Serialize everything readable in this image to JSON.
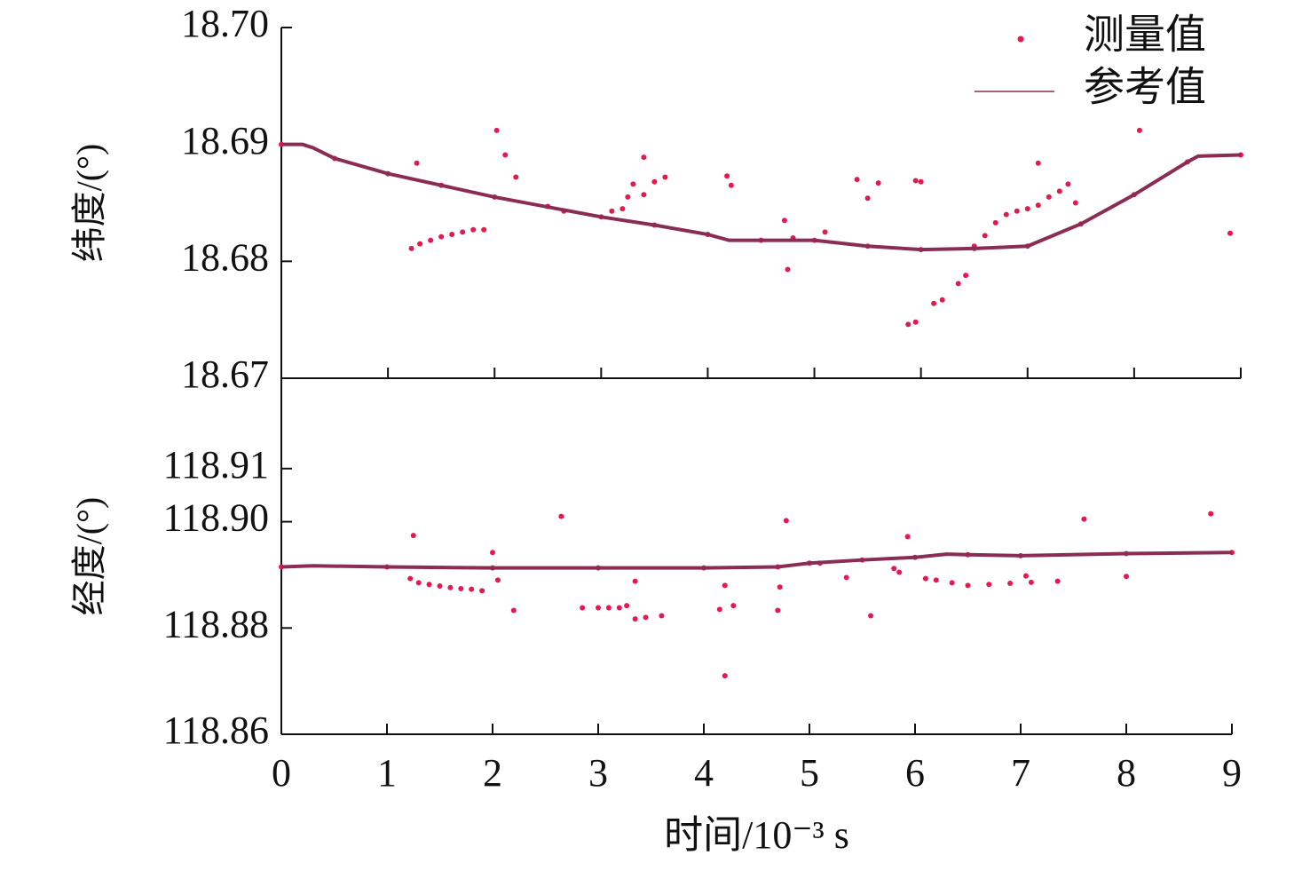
{
  "chart_data": [
    {
      "type": "line",
      "ylabel": "纬度/(°)",
      "xlim": [
        0,
        9
      ],
      "ylim": [
        18.67,
        18.7
      ],
      "yticks": [
        {
          "value": 18.7,
          "label": "18.70"
        },
        18.69,
        18.68,
        18.67
      ],
      "legend": "upper right",
      "series": [
        {
          "name": "测量值",
          "type": "scatter",
          "color": "#e8174e",
          "x": [
            0,
            0.5,
            1,
            1.5,
            2,
            2.5,
            3,
            3.5,
            4,
            4.5,
            5,
            5.5,
            6,
            6.5,
            7,
            7.5,
            8,
            8.5,
            9,
            1.22,
            1.3,
            1.4,
            1.5,
            1.6,
            1.7,
            1.8,
            1.9,
            1.27,
            2.02,
            2.1,
            2.2,
            2.65,
            3.4,
            3.1,
            3.2,
            3.25,
            3.3,
            3.4,
            3.5,
            3.6,
            4.18,
            4.22,
            4.72,
            4.75,
            4.8,
            5.1,
            5.4,
            5.5,
            5.6,
            5.95,
            6.0,
            5.88,
            5.95,
            6.12,
            6.2,
            6.35,
            6.42,
            6.5,
            6.6,
            6.7,
            6.8,
            6.9,
            7.0,
            7.1,
            7.2,
            7.3,
            7.38,
            7.1,
            7.45,
            8.05,
            8.9
          ],
          "values": [
            18.69,
            18.6888,
            18.6875,
            18.6865,
            18.6855,
            18.6847,
            18.6838,
            18.6831,
            18.6823,
            18.6818,
            18.6818,
            18.6813,
            18.681,
            18.6811,
            18.6813,
            18.6832,
            18.6857,
            18.6885,
            18.6891,
            18.6811,
            18.6815,
            18.6818,
            18.6821,
            18.6823,
            18.6825,
            18.6827,
            18.6827,
            18.6884,
            18.6912,
            18.6891,
            18.6872,
            18.6843,
            18.6889,
            18.6843,
            18.6845,
            18.6855,
            18.6866,
            18.6857,
            18.6868,
            18.6872,
            18.6873,
            18.6865,
            18.6835,
            18.6793,
            18.682,
            18.6825,
            18.687,
            18.6854,
            18.6867,
            18.6869,
            18.6868,
            18.6746,
            18.6748,
            18.6764,
            18.6767,
            18.6781,
            18.6788,
            18.6813,
            18.6822,
            18.6833,
            18.684,
            18.6843,
            18.6845,
            18.6848,
            18.6855,
            18.686,
            18.6866,
            18.6884,
            18.685,
            18.6912,
            18.6824
          ]
        },
        {
          "name": "参考值",
          "type": "line",
          "color": "#8a2d55",
          "x": [
            0,
            0.2,
            0.3,
            0.5,
            1,
            2,
            3,
            3.5,
            4,
            4.2,
            5,
            5.5,
            6,
            6.5,
            7,
            7.5,
            8,
            8.5,
            8.6,
            9
          ],
          "values": [
            18.69,
            18.69,
            18.6897,
            18.6888,
            18.6875,
            18.6855,
            18.6838,
            18.6831,
            18.6823,
            18.6818,
            18.6818,
            18.6813,
            18.681,
            18.6811,
            18.6813,
            18.6832,
            18.6857,
            18.6885,
            18.689,
            18.6891
          ]
        }
      ]
    },
    {
      "type": "line",
      "ylabel": "经度/(°)",
      "xlabel": "时间/10⁻³ s",
      "xlim": [
        0,
        9
      ],
      "ylim": [
        118.86,
        118.927
      ],
      "xticks": [
        0,
        1,
        2,
        3,
        4,
        5,
        6,
        7,
        8,
        9
      ],
      "yticks": [
        118.91,
        {
          "value": 118.9,
          "label": "118.90"
        },
        118.88,
        118.86
      ],
      "series": [
        {
          "type": "scatter",
          "color": "#e8174e",
          "x": [
            0,
            1,
            2,
            3,
            4,
            4.7,
            5,
            5.5,
            6,
            6.5,
            7,
            8,
            9,
            1.22,
            1.3,
            1.4,
            1.5,
            1.6,
            1.7,
            1.8,
            1.9,
            1.25,
            2.0,
            2.05,
            2.2,
            2.65,
            2.85,
            3.0,
            3.1,
            3.2,
            3.27,
            3.35,
            3.45,
            3.6,
            3.35,
            4.15,
            4.2,
            4.2,
            4.28,
            4.7,
            4.72,
            4.78,
            5.1,
            5.35,
            5.58,
            5.93,
            5.8,
            5.85,
            6.1,
            6.2,
            6.35,
            6.5,
            6.7,
            6.9,
            7.1,
            7.35,
            7.05,
            7.6,
            8.0,
            8.8
          ],
          "values": [
            118.8915,
            118.8915,
            118.8913,
            118.8913,
            118.8913,
            118.8915,
            118.8922,
            118.8928,
            118.8933,
            118.8938,
            118.8936,
            118.894,
            118.8942,
            118.8893,
            118.8885,
            118.8882,
            118.8879,
            118.8876,
            118.8874,
            118.8873,
            118.887,
            118.8974,
            118.8942,
            118.889,
            118.8833,
            118.901,
            118.8838,
            118.8838,
            118.8838,
            118.8838,
            118.8842,
            118.8817,
            118.882,
            118.8823,
            118.8888,
            118.8835,
            118.888,
            118.871,
            118.8842,
            118.8833,
            118.8877,
            118.9002,
            118.8922,
            118.8895,
            118.8823,
            118.8972,
            118.8912,
            118.8905,
            118.8893,
            118.889,
            118.8885,
            118.888,
            118.8882,
            118.8884,
            118.8886,
            118.8888,
            118.8898,
            118.9005,
            118.8897,
            118.9015
          ]
        },
        {
          "type": "line",
          "color": "#8a2d55",
          "x": [
            0,
            0.3,
            1,
            2,
            3,
            4,
            4.7,
            5,
            5.5,
            6,
            6.3,
            6.5,
            7,
            8,
            9
          ],
          "values": [
            118.8915,
            118.8917,
            118.8915,
            118.8913,
            118.8913,
            118.8913,
            118.8915,
            118.8922,
            118.8928,
            118.8933,
            118.8939,
            118.8938,
            118.8936,
            118.894,
            118.8942
          ]
        }
      ]
    }
  ]
}
